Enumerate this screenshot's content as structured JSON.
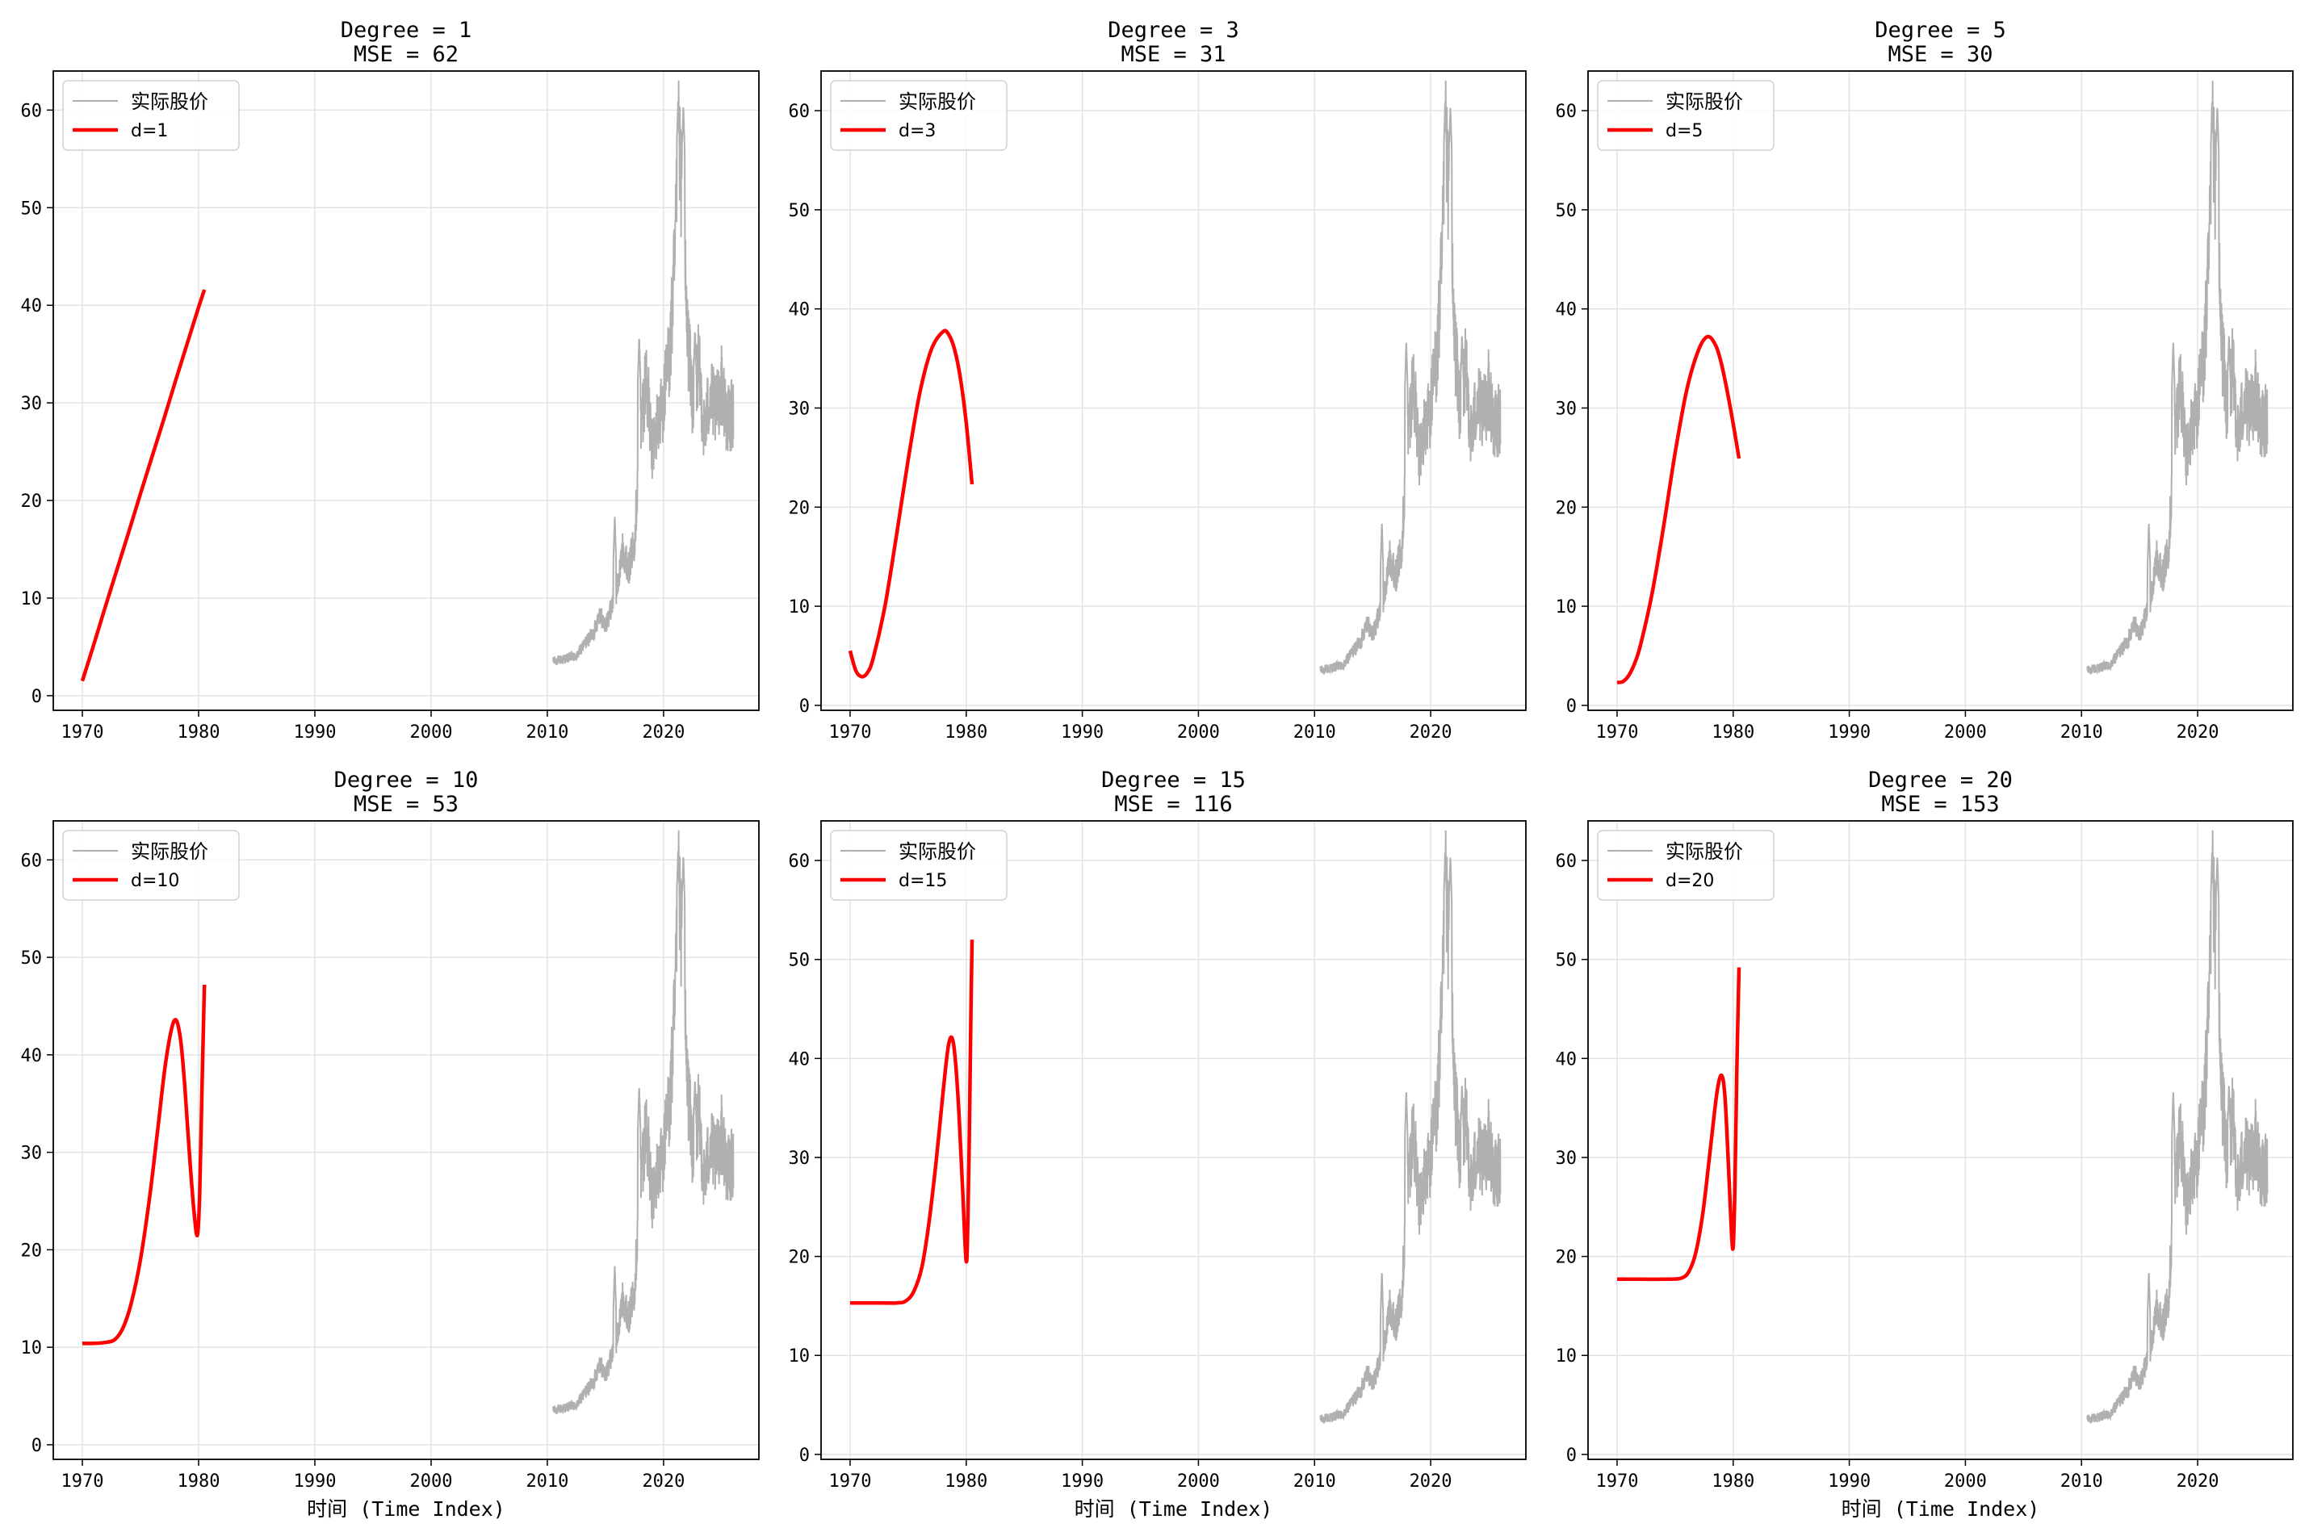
{
  "chart_data": [
    {
      "type": "line",
      "title": [
        "Degree = 1",
        "MSE = 62"
      ],
      "xlabel": "",
      "ylabel": "",
      "xlim": [
        1967.5,
        2028.2
      ],
      "ylim": [
        -1.5,
        64
      ],
      "xticks": [
        1970,
        1980,
        1990,
        2000,
        2010,
        2020
      ],
      "yticks": [
        0,
        10,
        20,
        30,
        40,
        50,
        60
      ],
      "grid": true,
      "legend": {
        "position": "top-left",
        "entries": [
          "实际股价",
          "d=1"
        ]
      },
      "colors": {
        "actual": "#b0b0b0",
        "fit": "#ff0000"
      },
      "series": [
        {
          "name": "实际股价",
          "ref": "actual"
        },
        {
          "name": "d=1",
          "x": [
            1970.0,
            1971.0,
            1972.0,
            1973.0,
            1974.0,
            1975.0,
            1976.0,
            1977.0,
            1978.0,
            1979.0,
            1980.0,
            1980.5
          ],
          "y": [
            1.5,
            5.3,
            9.2,
            13.0,
            16.8,
            20.7,
            24.5,
            28.3,
            32.2,
            36.0,
            39.8,
            41.6
          ]
        }
      ]
    },
    {
      "type": "line",
      "title": [
        "Degree = 3",
        "MSE = 31"
      ],
      "xlabel": "",
      "ylabel": "",
      "xlim": [
        1967.5,
        2028.2
      ],
      "ylim": [
        -0.5,
        64
      ],
      "xticks": [
        1970,
        1980,
        1990,
        2000,
        2010,
        2020
      ],
      "yticks": [
        0,
        10,
        20,
        30,
        40,
        50,
        60
      ],
      "grid": true,
      "legend": {
        "position": "top-left",
        "entries": [
          "实际股价",
          "d=3"
        ]
      },
      "colors": {
        "actual": "#b0b0b0",
        "fit": "#ff0000"
      },
      "series": [
        {
          "name": "实际股价",
          "ref": "actual"
        },
        {
          "name": "d=3",
          "x": [
            1970.0,
            1970.5,
            1971.0,
            1971.5,
            1972.0,
            1973.0,
            1974.0,
            1975.0,
            1976.0,
            1977.0,
            1978.0,
            1978.5,
            1979.0,
            1979.5,
            1980.0,
            1980.5
          ],
          "y": [
            5.5,
            3.5,
            2.9,
            3.3,
            4.8,
            10.0,
            17.2,
            24.8,
            31.5,
            35.9,
            37.7,
            37.4,
            35.9,
            33.0,
            28.5,
            22.3
          ]
        }
      ]
    },
    {
      "type": "line",
      "title": [
        "Degree = 5",
        "MSE = 30"
      ],
      "xlabel": "",
      "ylabel": "",
      "xlim": [
        1967.5,
        2028.2
      ],
      "ylim": [
        -0.5,
        64
      ],
      "xticks": [
        1970,
        1980,
        1990,
        2000,
        2010,
        2020
      ],
      "yticks": [
        0,
        10,
        20,
        30,
        40,
        50,
        60
      ],
      "grid": true,
      "legend": {
        "position": "top-left",
        "entries": [
          "实际股价",
          "d=5"
        ]
      },
      "colors": {
        "actual": "#b0b0b0",
        "fit": "#ff0000"
      },
      "series": [
        {
          "name": "实际股价",
          "ref": "actual"
        },
        {
          "name": "d=5",
          "x": [
            1970.0,
            1970.5,
            1971.0,
            1971.5,
            1972.0,
            1973.0,
            1974.0,
            1975.0,
            1976.0,
            1977.0,
            1977.8,
            1978.5,
            1979.0,
            1979.5,
            1980.0,
            1980.5
          ],
          "y": [
            2.3,
            2.4,
            3.0,
            4.2,
            6.0,
            11.2,
            18.0,
            25.5,
            31.8,
            35.8,
            37.2,
            36.3,
            34.4,
            31.6,
            28.4,
            24.9
          ]
        }
      ]
    },
    {
      "type": "line",
      "title": [
        "Degree = 10",
        "MSE = 53"
      ],
      "xlabel": "时间 (Time Index)",
      "ylabel": "",
      "xlim": [
        1967.5,
        2028.2
      ],
      "ylim": [
        -1.5,
        64
      ],
      "xticks": [
        1970,
        1980,
        1990,
        2000,
        2010,
        2020
      ],
      "yticks": [
        0,
        10,
        20,
        30,
        40,
        50,
        60
      ],
      "grid": true,
      "legend": {
        "position": "top-left",
        "entries": [
          "实际股价",
          "d=10"
        ]
      },
      "colors": {
        "actual": "#b0b0b0",
        "fit": "#ff0000"
      },
      "series": [
        {
          "name": "实际股价",
          "ref": "actual"
        },
        {
          "name": "d=10",
          "x": [
            1970.0,
            1971.0,
            1972.0,
            1972.8,
            1973.5,
            1974.2,
            1975.0,
            1975.8,
            1976.5,
            1977.2,
            1977.9,
            1978.4,
            1978.8,
            1979.2,
            1979.6,
            1979.9,
            1980.1,
            1980.3,
            1980.5
          ],
          "y": [
            10.4,
            10.4,
            10.5,
            10.8,
            12.0,
            14.5,
            19.0,
            25.5,
            32.5,
            39.5,
            43.5,
            42.0,
            37.0,
            30.0,
            24.0,
            21.5,
            26.0,
            37.0,
            47.2
          ]
        }
      ]
    },
    {
      "type": "line",
      "title": [
        "Degree = 15",
        "MSE = 116"
      ],
      "xlabel": "时间 (Time Index)",
      "ylabel": "",
      "xlim": [
        1967.5,
        2028.2
      ],
      "ylim": [
        -0.5,
        64
      ],
      "xticks": [
        1970,
        1980,
        1990,
        2000,
        2010,
        2020
      ],
      "yticks": [
        0,
        10,
        20,
        30,
        40,
        50,
        60
      ],
      "grid": true,
      "legend": {
        "position": "top-left",
        "entries": [
          "实际股价",
          "d=15"
        ]
      },
      "colors": {
        "actual": "#b0b0b0",
        "fit": "#ff0000"
      },
      "series": [
        {
          "name": "实际股价",
          "ref": "actual"
        },
        {
          "name": "d=15",
          "x": [
            1970.0,
            1972.0,
            1974.0,
            1974.8,
            1975.5,
            1976.2,
            1976.8,
            1977.4,
            1978.0,
            1978.5,
            1978.9,
            1979.3,
            1979.7,
            1980.0,
            1980.15,
            1980.3,
            1980.4,
            1980.5
          ],
          "y": [
            15.3,
            15.3,
            15.3,
            15.5,
            16.5,
            19.0,
            23.5,
            29.5,
            36.5,
            41.5,
            41.5,
            36.0,
            26.5,
            19.5,
            24.0,
            35.0,
            44.0,
            52.0
          ]
        }
      ]
    },
    {
      "type": "line",
      "title": [
        "Degree = 20",
        "MSE = 153"
      ],
      "xlabel": "时间 (Time Index)",
      "ylabel": "",
      "xlim": [
        1967.5,
        2028.2
      ],
      "ylim": [
        -0.5,
        64
      ],
      "xticks": [
        1970,
        1980,
        1990,
        2000,
        2010,
        2020
      ],
      "yticks": [
        0,
        10,
        20,
        30,
        40,
        50,
        60
      ],
      "grid": true,
      "legend": {
        "position": "top-left",
        "entries": [
          "实际股价",
          "d=20"
        ]
      },
      "colors": {
        "actual": "#b0b0b0",
        "fit": "#ff0000"
      },
      "series": [
        {
          "name": "实际股价",
          "ref": "actual"
        },
        {
          "name": "d=20",
          "x": [
            1970.0,
            1972.0,
            1974.0,
            1975.5,
            1976.2,
            1976.8,
            1977.4,
            1978.0,
            1978.6,
            1979.0,
            1979.3,
            1979.6,
            1979.85,
            1980.0,
            1980.15,
            1980.3,
            1980.5
          ],
          "y": [
            17.7,
            17.7,
            17.7,
            17.8,
            18.5,
            20.5,
            24.5,
            30.5,
            36.5,
            38.3,
            36.0,
            29.0,
            22.5,
            21.0,
            27.0,
            38.0,
            49.2
          ]
        }
      ]
    }
  ],
  "actual_price": {
    "name": "实际股价",
    "x_start": 2010.5,
    "x_end": 2026.0,
    "anchors": [
      [
        2010.5,
        3.5
      ],
      [
        2011.5,
        3.8
      ],
      [
        2012.5,
        4.0
      ],
      [
        2013.0,
        5.0
      ],
      [
        2014.0,
        6.5
      ],
      [
        2014.5,
        8.5
      ],
      [
        2015.0,
        7.0
      ],
      [
        2015.5,
        9.0
      ],
      [
        2016.0,
        11.0
      ],
      [
        2016.5,
        15.0
      ],
      [
        2017.0,
        13.0
      ],
      [
        2017.5,
        16.0
      ],
      [
        2018.0,
        27.0
      ],
      [
        2018.5,
        33.0
      ],
      [
        2019.0,
        25.0
      ],
      [
        2019.5,
        28.0
      ],
      [
        2020.0,
        30.0
      ],
      [
        2020.6,
        36.0
      ],
      [
        2021.0,
        45.0
      ],
      [
        2021.3,
        56.0
      ],
      [
        2021.6,
        52.0
      ],
      [
        2022.0,
        38.0
      ],
      [
        2022.5,
        30.0
      ],
      [
        2023.0,
        34.0
      ],
      [
        2023.5,
        27.0
      ],
      [
        2024.0,
        31.0
      ],
      [
        2024.5,
        29.0
      ],
      [
        2025.0,
        32.0
      ],
      [
        2025.5,
        28.0
      ],
      [
        2026.0,
        29.0
      ]
    ],
    "spikes": [
      [
        2015.8,
        18.5
      ],
      [
        2017.9,
        36.8
      ],
      [
        2021.25,
        61.0
      ],
      [
        2021.7,
        60.5
      ],
      [
        2022.7,
        37.5
      ],
      [
        2024.1,
        26.0
      ]
    ]
  }
}
